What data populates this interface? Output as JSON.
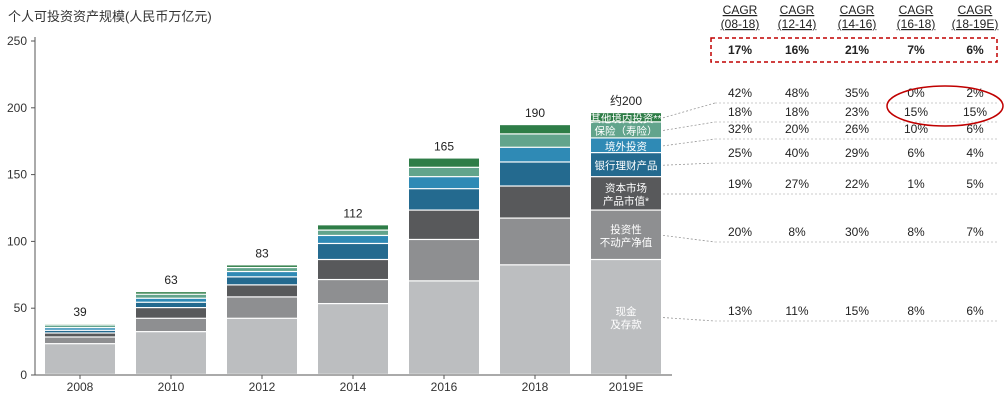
{
  "chart_data": {
    "type": "bar",
    "stacked": true,
    "title": "个人可投资资产规模(人民币万亿元)",
    "categories": [
      "2008",
      "2010",
      "2012",
      "2014",
      "2016",
      "2018",
      "2019E"
    ],
    "totals": [
      "39",
      "63",
      "83",
      "112",
      "165",
      "190",
      "约200"
    ],
    "ylim": [
      0,
      250
    ],
    "yticks": [
      0,
      50,
      100,
      150,
      200,
      250
    ],
    "series": [
      {
        "name": "现金及存款",
        "color": "#bcbec0",
        "values": [
          23,
          32,
          42,
          53,
          70,
          82,
          86
        ]
      },
      {
        "name": "投资性不动产净值",
        "color": "#8e8f91",
        "values": [
          5,
          10,
          16,
          18,
          31,
          35,
          37
        ]
      },
      {
        "name": "资本市场产品市值*",
        "color": "#58595b",
        "values": [
          3,
          8,
          9,
          15,
          22,
          24,
          25
        ]
      },
      {
        "name": "银行理财产品",
        "color": "#246a8f",
        "values": [
          2,
          4,
          6,
          12,
          16,
          18,
          18
        ]
      },
      {
        "name": "境外投资",
        "color": "#2f8ab5",
        "values": [
          2,
          3,
          4,
          6,
          9,
          11,
          11
        ]
      },
      {
        "name": "保险（寿险）",
        "color": "#62a48c",
        "values": [
          2,
          3,
          3,
          4,
          7,
          10,
          12
        ]
      },
      {
        "name": "其他境内投资**",
        "color": "#2e7d47",
        "values": [
          1,
          2,
          2,
          4,
          7,
          7,
          7
        ]
      }
    ],
    "segment_labels": [
      "现金\n及存款",
      "投资性\n不动产净值",
      "资本市场\n产品市值*",
      "银行理财产品",
      "境外投资",
      "保险（寿险）",
      "其他境内投资**"
    ],
    "cagr": {
      "headers": [
        [
          "CAGR",
          "(08-18)"
        ],
        [
          "CAGR",
          "(12-14)"
        ],
        [
          "CAGR",
          "(14-16)"
        ],
        [
          "CAGR",
          "(16-18)"
        ],
        [
          "CAGR",
          "(18-19E)"
        ]
      ],
      "total": [
        "17%",
        "16%",
        "21%",
        "7%",
        "6%"
      ],
      "rows": [
        [
          "42%",
          "48%",
          "35%",
          "0%",
          "2%"
        ],
        [
          "18%",
          "18%",
          "23%",
          "15%",
          "15%"
        ],
        [
          "32%",
          "20%",
          "26%",
          "10%",
          "6%"
        ],
        [
          "25%",
          "40%",
          "29%",
          "6%",
          "4%"
        ],
        [
          "19%",
          "27%",
          "22%",
          "1%",
          "5%"
        ],
        [
          "20%",
          "8%",
          "30%",
          "8%",
          "7%"
        ],
        [
          "13%",
          "11%",
          "15%",
          "8%",
          "6%"
        ]
      ],
      "highlight_color": "#c00000"
    }
  }
}
